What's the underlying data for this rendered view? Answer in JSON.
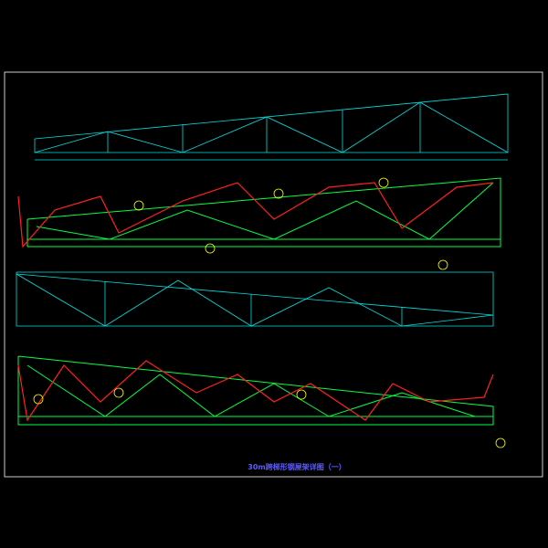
{
  "drawing": {
    "title": "30m跨梯形钢屋架详图（一）"
  }
}
